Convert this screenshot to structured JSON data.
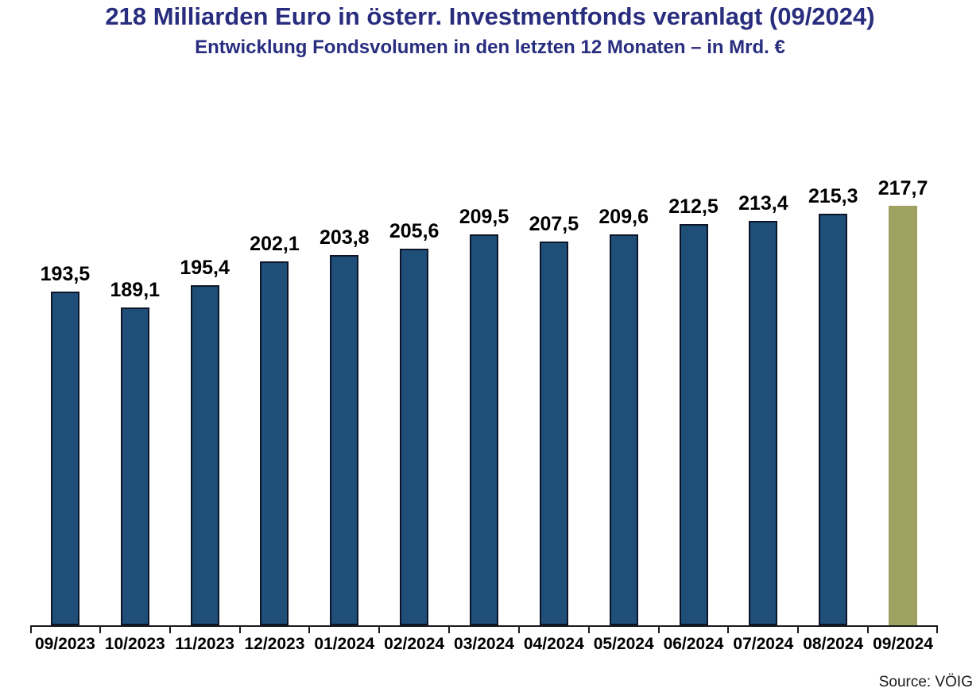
{
  "header": {
    "title": "218 Milliarden Euro in österr. Investmentfonds veranlagt (09/2024)",
    "subtitle": "Entwicklung Fondsvolumen in den letzten 12 Monaten – in Mrd. €"
  },
  "footer": {
    "source": "Source: VÖIG"
  },
  "chart_data": {
    "type": "bar",
    "title": "218 Milliarden Euro in österr. Investmentfonds veranlagt (09/2024)",
    "subtitle": "Entwicklung Fondsvolumen in den letzten 12 Monaten – in Mrd. €",
    "unit": "Mrd. €",
    "categories": [
      "09/2023",
      "10/2023",
      "11/2023",
      "12/2023",
      "01/2024",
      "02/2024",
      "03/2024",
      "04/2024",
      "05/2024",
      "06/2024",
      "07/2024",
      "08/2024",
      "09/2024"
    ],
    "values": [
      193.5,
      189.1,
      195.4,
      202.1,
      203.8,
      205.6,
      209.5,
      207.5,
      209.6,
      212.5,
      213.4,
      215.3,
      217.7
    ],
    "value_labels": [
      "193,5",
      "189,1",
      "195,4",
      "202,1",
      "203,8",
      "205,6",
      "209,5",
      "207,5",
      "209,6",
      "212,5",
      "213,4",
      "215,3",
      "217,7"
    ],
    "highlight_index": 12,
    "ylim": [
      100,
      253
    ],
    "grid": false,
    "legend": false,
    "value_labels_shown": true,
    "xlabel": "",
    "ylabel": "",
    "colors": {
      "bar": "#1F4E79",
      "bar_border": "#0C1528",
      "highlight_bar": "#9FA161",
      "axis": "#1A1A1A",
      "title": "#282D7E",
      "data_label": "#000000"
    }
  }
}
